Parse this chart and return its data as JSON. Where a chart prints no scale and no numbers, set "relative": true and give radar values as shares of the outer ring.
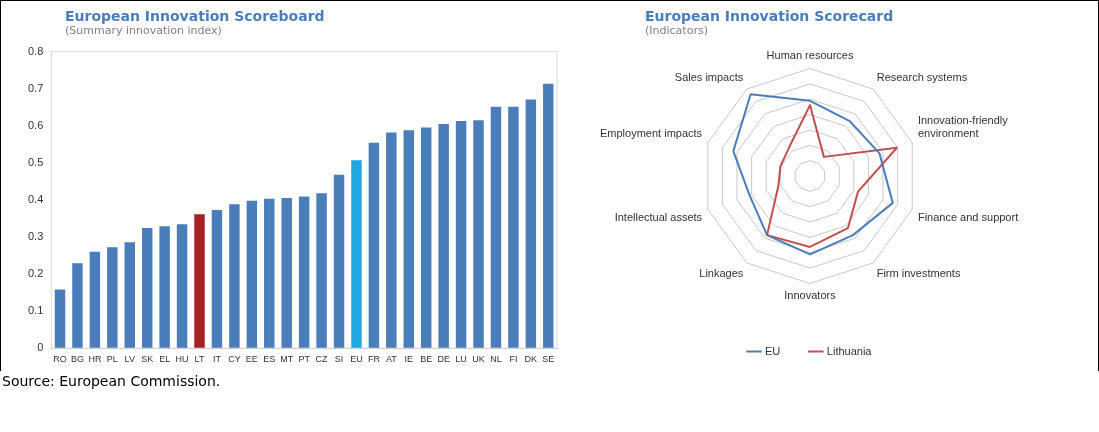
{
  "chart_data": [
    {
      "type": "bar",
      "title": "European Innovation Scoreboard",
      "subtitle": "(Summary innovation index)",
      "categories": [
        "RO",
        "BG",
        "HR",
        "PL",
        "LV",
        "SK",
        "EL",
        "HU",
        "LT",
        "IT",
        "CY",
        "EE",
        "ES",
        "MT",
        "PT",
        "CZ",
        "SI",
        "EU",
        "FR",
        "AT",
        "IE",
        "BE",
        "DE",
        "LU",
        "UK",
        "NL",
        "FI",
        "DK",
        "SE"
      ],
      "values": [
        0.158,
        0.229,
        0.26,
        0.272,
        0.286,
        0.324,
        0.329,
        0.334,
        0.361,
        0.373,
        0.388,
        0.398,
        0.403,
        0.405,
        0.409,
        0.418,
        0.468,
        0.507,
        0.554,
        0.582,
        0.588,
        0.595,
        0.605,
        0.613,
        0.615,
        0.651,
        0.651,
        0.671,
        0.713
      ],
      "colors": [
        "#4a7ebb",
        "#4a7ebb",
        "#4a7ebb",
        "#4a7ebb",
        "#4a7ebb",
        "#4a7ebb",
        "#4a7ebb",
        "#4a7ebb",
        "#a51f24",
        "#4a7ebb",
        "#4a7ebb",
        "#4a7ebb",
        "#4a7ebb",
        "#4a7ebb",
        "#4a7ebb",
        "#4a7ebb",
        "#4a7ebb",
        "#1ea7e0",
        "#4a7ebb",
        "#4a7ebb",
        "#4a7ebb",
        "#4a7ebb",
        "#4a7ebb",
        "#4a7ebb",
        "#4a7ebb",
        "#4a7ebb",
        "#4a7ebb",
        "#4a7ebb",
        "#4a7ebb"
      ],
      "ylim": [
        0,
        0.8
      ],
      "yticks": [
        0,
        0.1,
        0.2,
        0.3,
        0.4,
        0.5,
        0.6,
        0.7,
        0.8
      ],
      "grid": false,
      "annotations": [
        "Source: European Commission."
      ]
    },
    {
      "type": "radar",
      "title": "European Innovation Scorecard",
      "subtitle": "(Indicators)",
      "relative": true,
      "categories": [
        "Human resources",
        "Research systems",
        "Innovation-friendly environment",
        "Finance and support",
        "Firm investments",
        "Innovators",
        "Linkages",
        "Intellectual assets",
        "Employment impacts",
        "Sales impacts"
      ],
      "series": [
        {
          "name": "EU",
          "color": "#4a7ebb",
          "values": [
            0.7,
            0.63,
            0.68,
            0.81,
            0.68,
            0.73,
            0.68,
            0.59,
            0.75,
            0.94
          ]
        },
        {
          "name": "Lithuania",
          "color": "#c0504d",
          "values": [
            0.66,
            0.22,
            0.85,
            0.47,
            0.6,
            0.66,
            0.68,
            0.31,
            0.29,
            0.33
          ]
        }
      ],
      "legend": "bottom",
      "marker": "none"
    }
  ]
}
